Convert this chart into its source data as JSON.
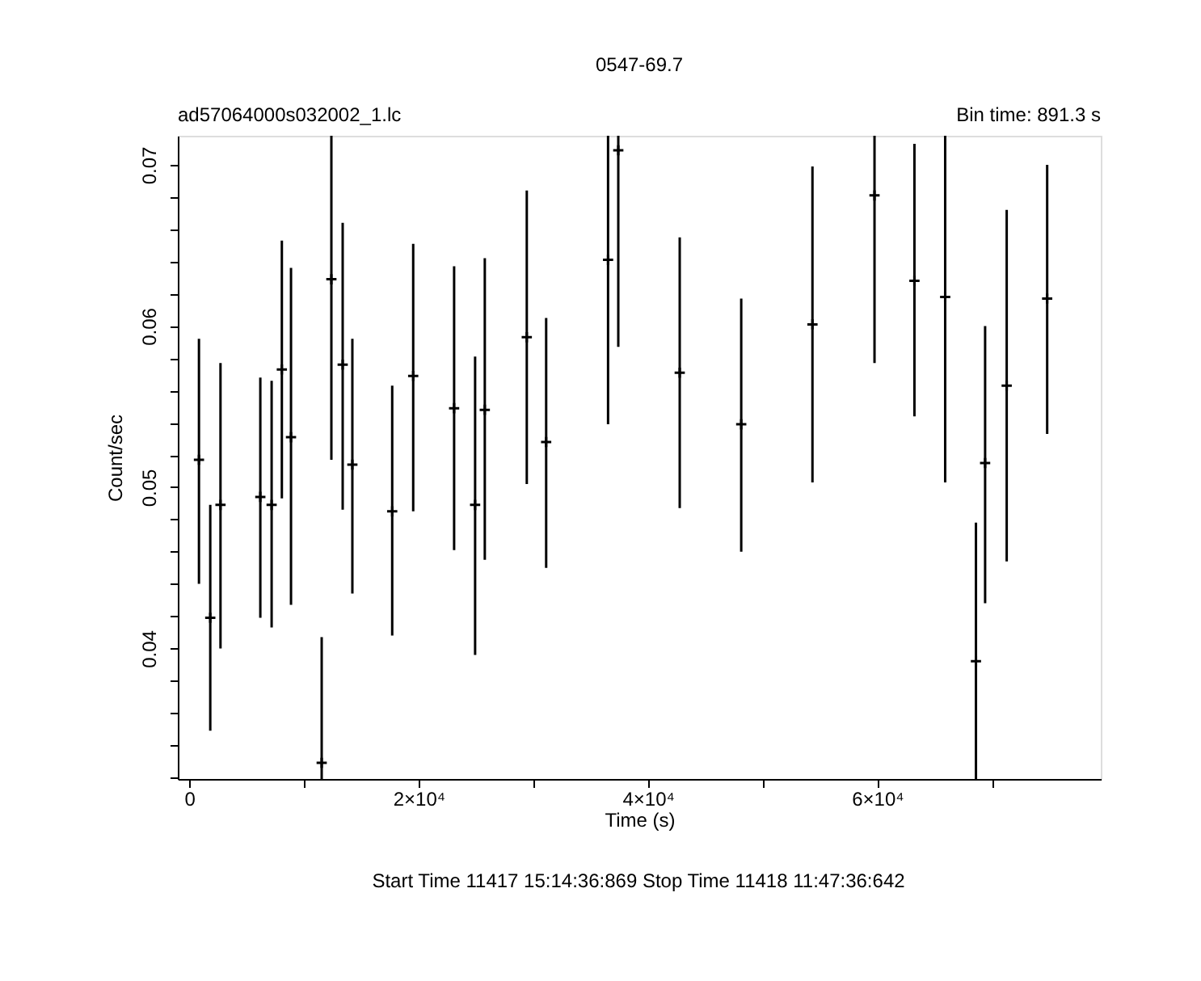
{
  "chart_data": {
    "type": "scatter",
    "title": "0547-69.7",
    "xlabel": "Time (s)",
    "ylabel": "Count/sec",
    "annotations": [
      "ad57064000s032002_1.lc",
      "Bin time:    891.3    s",
      "Start Time 11417 15:14:36:869     Stop Time 11418 11:47:36:642"
    ],
    "x": [
      845,
      1831,
      2723,
      6197,
      7183,
      8075,
      8873,
      11549,
      12394,
      13380,
      14225,
      17700,
      19531,
      23099,
      24930,
      25775,
      29437,
      31127,
      36526,
      37418,
      42776,
      48141,
      54353,
      59765,
      63247,
      65929,
      68612,
      69412,
      71294,
      74824
    ],
    "values": [
      0.0517,
      0.0419,
      0.0489,
      0.0494,
      0.0489,
      0.0573,
      0.0531,
      0.0329,
      0.0629,
      0.0576,
      0.0514,
      0.0485,
      0.0569,
      0.0549,
      0.0489,
      0.0548,
      0.0593,
      0.0528,
      0.0641,
      0.0709,
      0.0571,
      0.0539,
      0.0601,
      0.0681,
      0.0628,
      0.0618,
      0.0392,
      0.0515,
      0.0563,
      0.0617
    ],
    "errors": [
      [
        0.044,
        0.0592
      ],
      [
        0.0349,
        0.0489
      ],
      [
        0.04,
        0.0577
      ],
      [
        0.0419,
        0.0568
      ],
      [
        0.0413,
        0.0566
      ],
      [
        0.0493,
        0.0653
      ],
      [
        0.0427,
        0.0636
      ],
      [
        0.0319,
        0.0407
      ],
      [
        0.0517,
        0.0718
      ],
      [
        0.0486,
        0.0664
      ],
      [
        0.0434,
        0.0592
      ],
      [
        0.0408,
        0.0563
      ],
      [
        0.0485,
        0.0651
      ],
      [
        0.0461,
        0.0637
      ],
      [
        0.0396,
        0.0581
      ],
      [
        0.0455,
        0.0642
      ],
      [
        0.0502,
        0.0684
      ],
      [
        0.045,
        0.0605
      ],
      [
        0.0539,
        0.0718
      ],
      [
        0.0587,
        0.0718
      ],
      [
        0.0487,
        0.0655
      ],
      [
        0.046,
        0.0617
      ],
      [
        0.0503,
        0.0699
      ],
      [
        0.0577,
        0.0718
      ],
      [
        0.0544,
        0.0713
      ],
      [
        0.0503,
        0.0718
      ],
      [
        0.0319,
        0.0478
      ],
      [
        0.0428,
        0.06
      ],
      [
        0.0454,
        0.0672
      ],
      [
        0.0533,
        0.07
      ]
    ],
    "color": "#000000",
    "marker": "cross",
    "grid": false,
    "xlim": [
      -1000,
      79500
    ],
    "xticks": [
      0,
      {
        "value": 10000,
        "label": null
      },
      {
        "value": 20000,
        "label": "2×10⁴"
      },
      {
        "value": 30000,
        "label": null
      },
      {
        "value": 40000,
        "label": "4×10⁴"
      },
      {
        "value": 50000,
        "label": null
      },
      {
        "value": 60000,
        "label": "6×10⁴"
      },
      {
        "value": 70000,
        "label": null
      }
    ],
    "ylim": [
      0.0319,
      0.0718
    ],
    "yticks": [
      {
        "value": 0.032,
        "label": null
      },
      {
        "value": 0.034,
        "label": null
      },
      {
        "value": 0.036,
        "label": null
      },
      {
        "value": 0.038,
        "label": null
      },
      0.04,
      {
        "value": 0.042,
        "label": null
      },
      {
        "value": 0.044,
        "label": null
      },
      {
        "value": 0.046,
        "label": null
      },
      {
        "value": 0.048,
        "label": null
      },
      0.05,
      {
        "value": 0.052,
        "label": null
      },
      {
        "value": 0.054,
        "label": null
      },
      {
        "value": 0.056,
        "label": null
      },
      {
        "value": 0.058,
        "label": null
      },
      0.06,
      {
        "value": 0.062,
        "label": null
      },
      {
        "value": 0.064,
        "label": null
      },
      {
        "value": 0.066,
        "label": null
      },
      {
        "value": 0.068,
        "label": null
      },
      0.07
    ]
  }
}
